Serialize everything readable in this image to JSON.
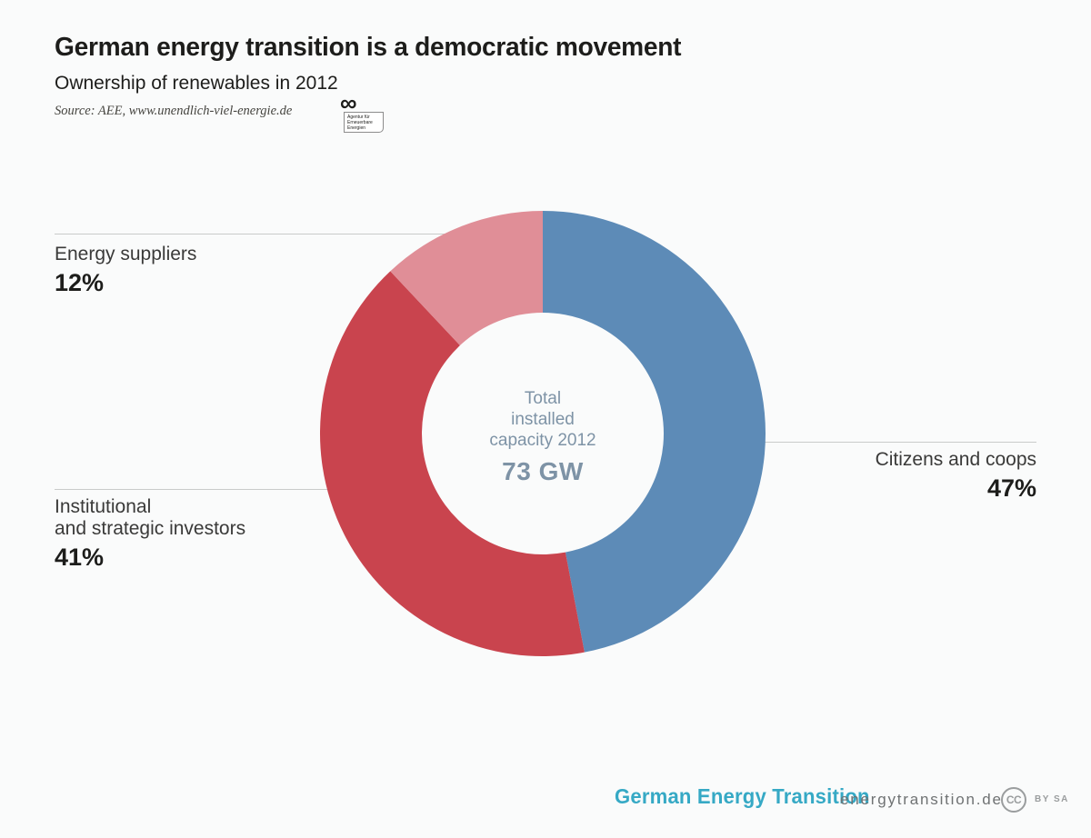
{
  "page": {
    "background": "#fafbfb"
  },
  "header": {
    "title": "German energy transition is a democratic movement",
    "subtitle": "Ownership of renewables in 2012",
    "source": "Source: AEE, www.unendlich-viel-energie.de",
    "source_logo": {
      "symbol": "∞",
      "org_lines": [
        "Agentur für",
        "Erneuerbare",
        "Energien"
      ]
    }
  },
  "chart_data": {
    "type": "pie",
    "variant": "donut",
    "title": "Ownership of renewables in 2012",
    "unit": "percent",
    "start_angle_deg": 0,
    "direction": "clockwise",
    "segments": [
      {
        "label": "Citizens and coops",
        "value": 47,
        "display": "47%",
        "color": "#5d8bb7"
      },
      {
        "label": "Institutional and strategic investors",
        "value": 41,
        "display": "41%",
        "color": "#c9444e"
      },
      {
        "label": "Energy suppliers",
        "value": 12,
        "display": "12%",
        "color": "#e08e97"
      }
    ],
    "center_label": [
      "Total",
      "installed",
      "capacity 2012"
    ],
    "center_value": "73 GW",
    "legend_position": "outside-callouts",
    "geometry": {
      "outer_radius": 245,
      "inner_radius": 133
    }
  },
  "callouts": {
    "energy_suppliers": {
      "label": "Energy suppliers",
      "value": "12%"
    },
    "citizens": {
      "label": "Citizens and coops",
      "value": "47%"
    },
    "institutional": {
      "label_line1": "Institutional",
      "label_line2": "and strategic investors",
      "value": "41%"
    }
  },
  "footer": {
    "brand": "German Energy Transition",
    "url": "energytransition.de",
    "cc_label": "CC",
    "license": "BY SA"
  }
}
